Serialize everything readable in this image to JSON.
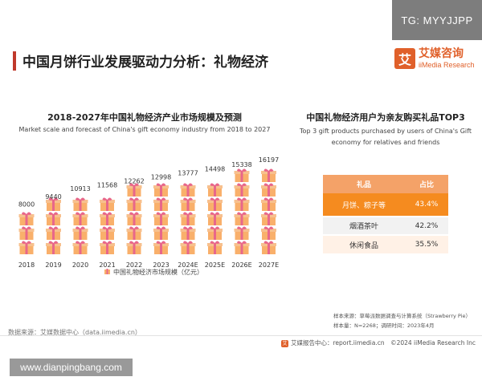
{
  "badge": "TG: MYYJJPP",
  "page_title": "中国月饼行业发展驱动力分析：礼物经济",
  "brand": {
    "cn": "艾媒咨询",
    "en": "iiMedia Research",
    "logo_glyph": "艾",
    "color": "#e0602a"
  },
  "chart_data": [
    {
      "type": "bar",
      "title": "2018-2027年中国礼物经济产业市场规模及预测",
      "subtitle": "Market scale and forecast of China's gift economy industry from 2018 to 2027",
      "categories": [
        "2018",
        "2019",
        "2020",
        "2021",
        "2022",
        "2023",
        "2024E",
        "2025E",
        "2026E",
        "2027E"
      ],
      "series": [
        {
          "name": "中国礼物经济市场规模（亿元）",
          "values": [
            8000,
            9440,
            10913,
            11568,
            12262,
            12998,
            13777,
            14498,
            15338,
            16197
          ]
        }
      ],
      "color": "#f9b06b"
    },
    {
      "type": "table",
      "title": "中国礼物经济用户为亲友购买礼品TOP3",
      "subtitle": "Top 3 gift products purchased by users of China's Gift economy for relatives and friends",
      "headers": [
        "礼品",
        "占比"
      ],
      "rows": [
        [
          "月饼、粽子等",
          "43.4%"
        ],
        [
          "烟酒茶叶",
          "42.2%"
        ],
        [
          "休闲食品",
          "35.5%"
        ]
      ],
      "highlight_color": "#f58b1f"
    }
  ],
  "source_left": "数据来源：艾媒数据中心（data.iimedia.cn）",
  "source_right": {
    "line1": "样本来源：草莓派数据调查与计算系统（Strawberry Pie）",
    "line2": "样本量：N=2268；调研时间：2023年4月"
  },
  "footer_report": "艾媒报告中心：report.iimedia.cn　©2024  iiMedia Research  Inc",
  "watermark": "www.dianpingbang.com"
}
